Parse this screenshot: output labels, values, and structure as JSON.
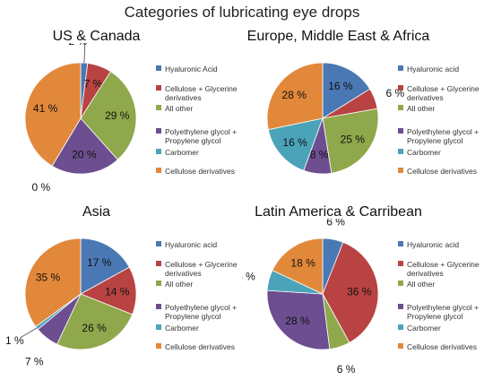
{
  "title": "Categories of lubricating eye drops",
  "colors": [
    "#4a78b4",
    "#b84342",
    "#8ea84b",
    "#6d4e91",
    "#4ba3b9",
    "#e2883b"
  ],
  "chart_data": [
    {
      "type": "pie",
      "title": "US & Canada",
      "categories": [
        "Hyaluronic Acid",
        "Cellulose + Glycerine derivatives",
        "All other",
        "Polyethylene glycol + Propylene glycol",
        "Carbomer",
        "Cellulose derivatives"
      ],
      "values": [
        2,
        7,
        29,
        20,
        0,
        41
      ],
      "data_labels": [
        "2 %",
        "7 %",
        "29 %",
        "20 %",
        "0 %",
        "41 %"
      ],
      "legend": "right"
    },
    {
      "type": "pie",
      "title": "Europe, Middle East & Africa",
      "categories": [
        "Hyaluronic acid",
        "Cellulose + Glycerine derivatives",
        "All other",
        "Polyethylene glycol + Propylene glycol",
        "Carbomer",
        "Cellulose derivatives"
      ],
      "values": [
        16,
        6,
        25,
        8,
        16,
        28
      ],
      "data_labels": [
        "16 %",
        "6 %",
        "25 %",
        "8 %",
        "16 %",
        "28 %"
      ],
      "legend": "right"
    },
    {
      "type": "pie",
      "title": "Asia",
      "categories": [
        "Hyaluronic acid",
        "Cellulose + Glycerine derivatives",
        "All other",
        "Polyethylene glycol + Propylene glycol",
        "Carbomer",
        "Cellulose derivatives"
      ],
      "values": [
        17,
        14,
        26,
        7,
        1,
        35
      ],
      "data_labels": [
        "17 %",
        "14 %",
        "26 %",
        "7 %",
        "1 %",
        "35 %"
      ],
      "legend": "right"
    },
    {
      "type": "pie",
      "title": "Latin America & Carribean",
      "categories": [
        "Hyaluronic acid",
        "Cellulose + Glycerine derivatives",
        "All other",
        "Polyethylene glycol + Propylene glycol",
        "Carbomer",
        "Cellulose derivatives"
      ],
      "values": [
        6,
        36,
        6,
        28,
        6,
        18
      ],
      "data_labels": [
        "6 %",
        "36 %",
        "6 %",
        "28 %",
        "6 %",
        "18 %"
      ],
      "legend": "right"
    }
  ]
}
